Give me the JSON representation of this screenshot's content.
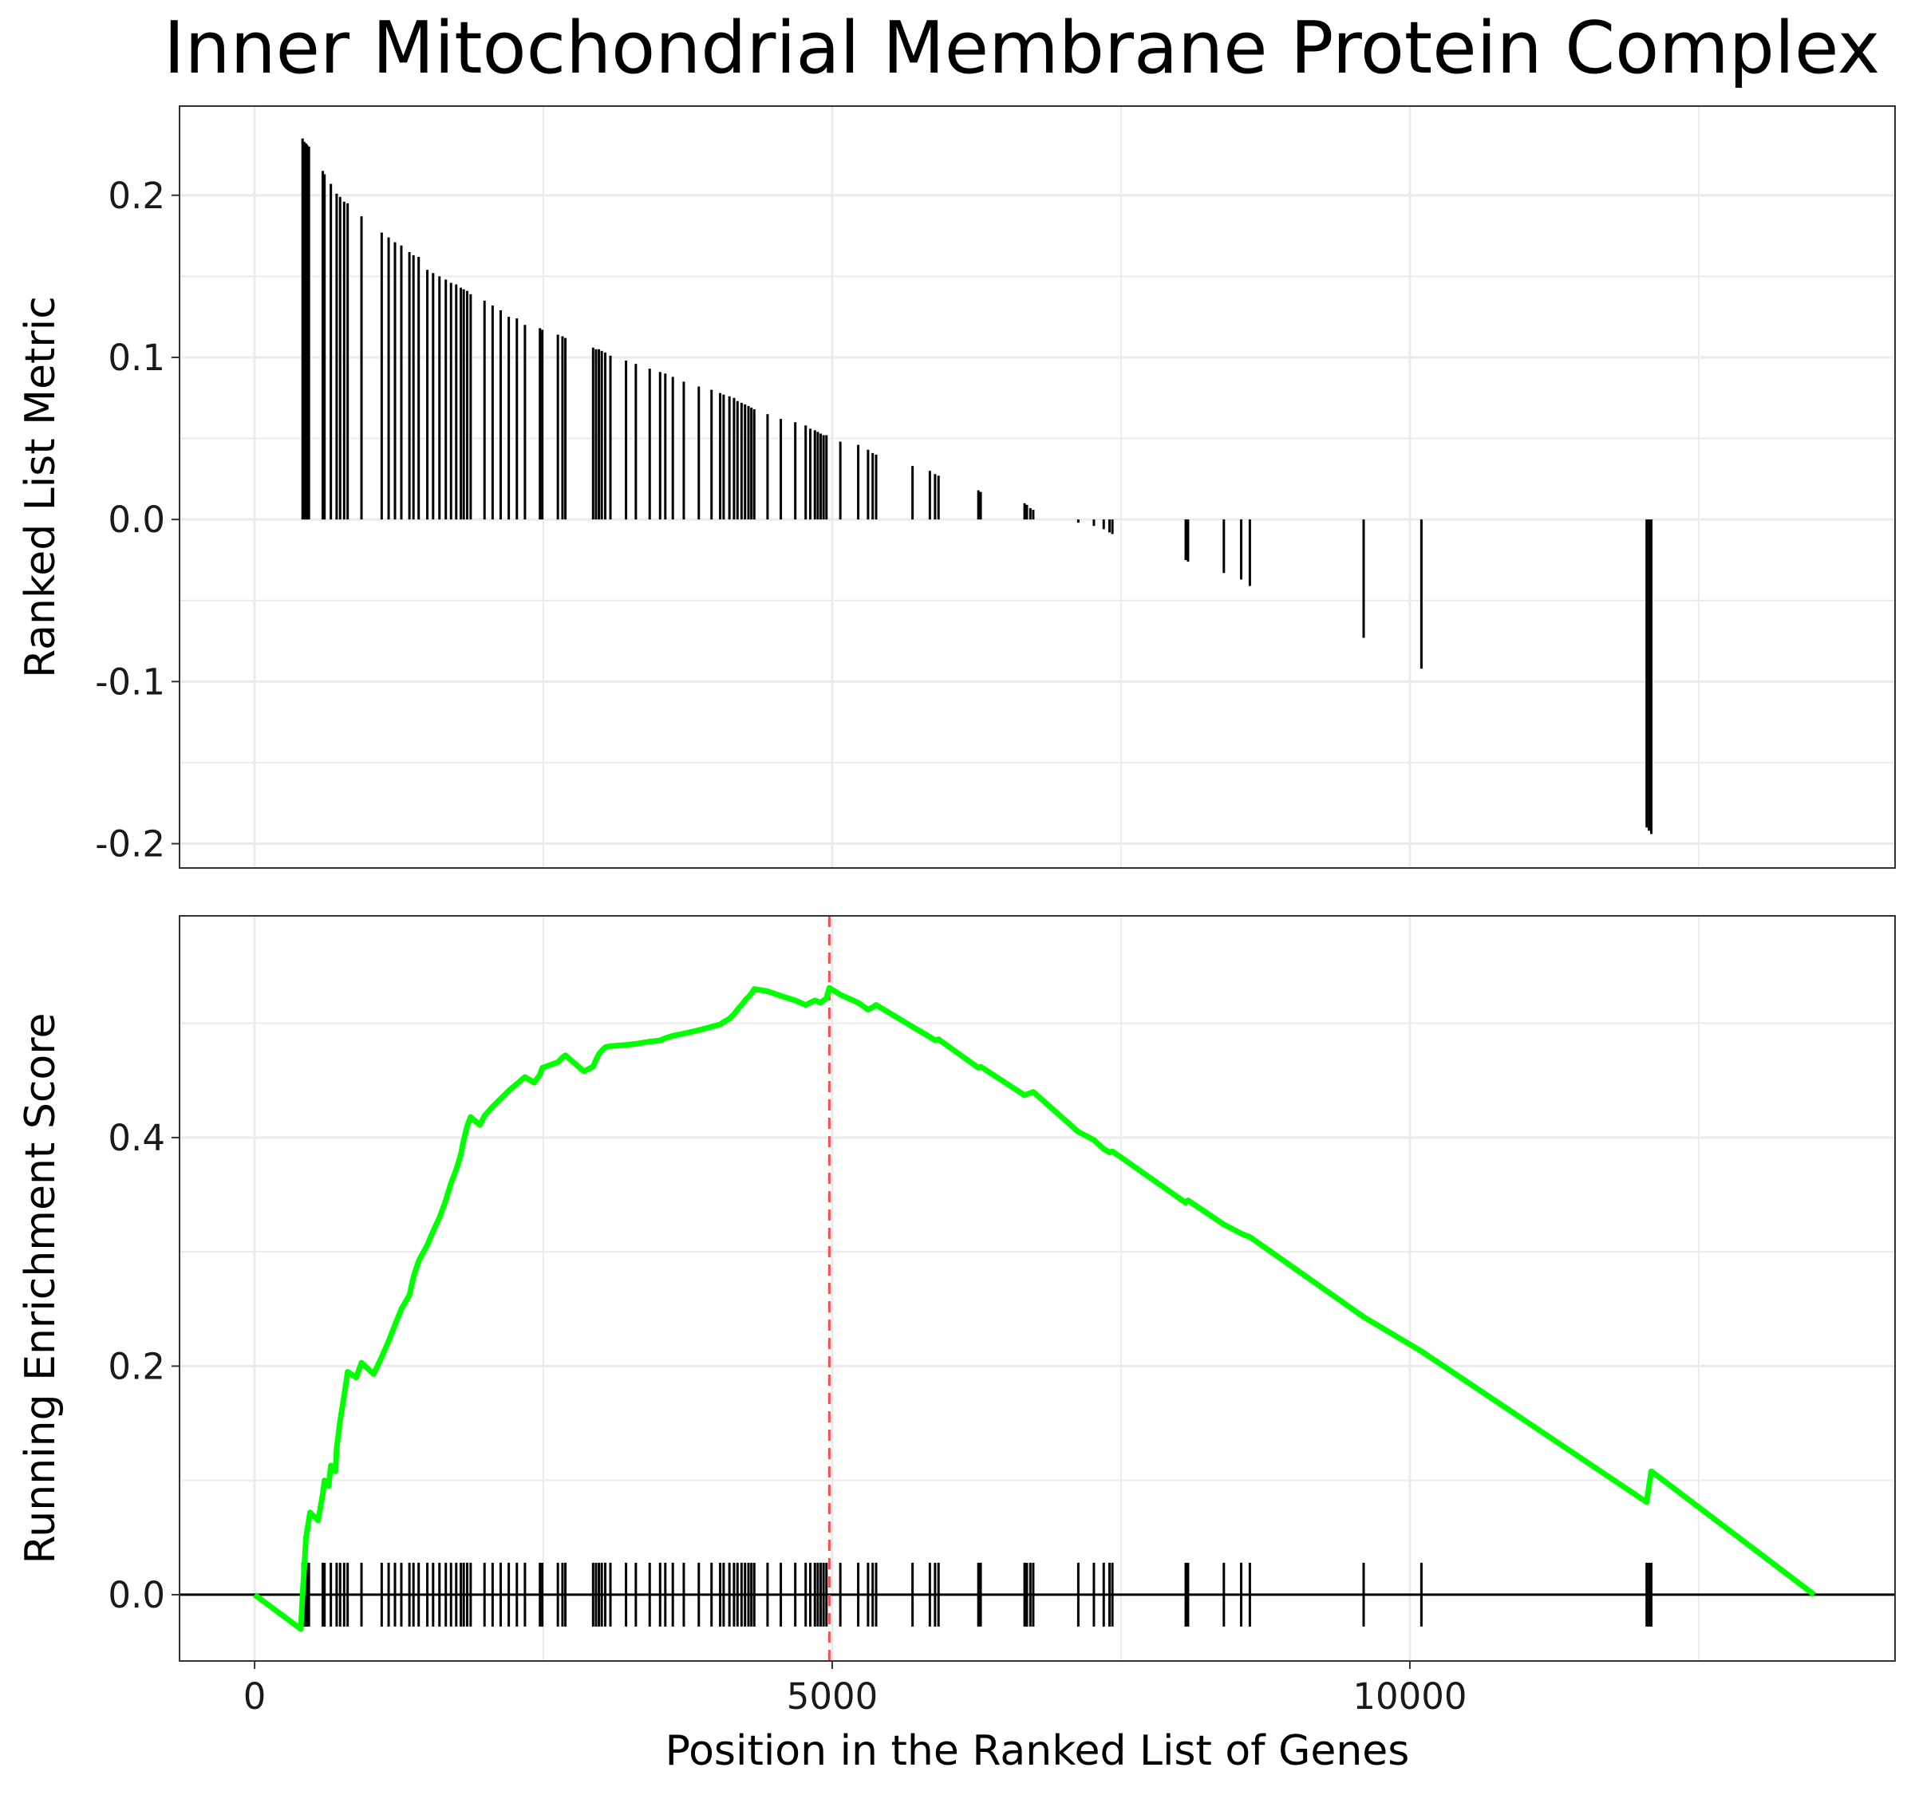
{
  "title": "Inner Mitochondrial Membrane Protein Complex",
  "colors": {
    "curve": "#00ff00",
    "max_line": "#ff4d4d",
    "bars": "#000000",
    "grid": "#ebebeb"
  },
  "chart_data": [
    {
      "type": "bar",
      "panel": "top",
      "ylabel": "Ranked List Metric",
      "xlim": [
        -650,
        14200
      ],
      "ylim": [
        -0.215,
        0.255
      ],
      "yticks": [
        -0.2,
        -0.1,
        0.0,
        0.1,
        0.2
      ],
      "ytick_labels": [
        "-0.2",
        "-0.1",
        "0.0",
        "0.1",
        "0.2"
      ],
      "grid": true,
      "x": [
        415,
        430,
        445,
        455,
        470,
        590,
        605,
        660,
        710,
        740,
        775,
        805,
        925,
        1100,
        1160,
        1215,
        1270,
        1340,
        1375,
        1420,
        1495,
        1545,
        1600,
        1655,
        1700,
        1745,
        1785,
        1810,
        1840,
        1870,
        1990,
        2060,
        2130,
        2200,
        2270,
        2340,
        2470,
        2490,
        2625,
        2665,
        2690,
        2930,
        2955,
        2980,
        3005,
        3035,
        3080,
        3215,
        3300,
        3420,
        3510,
        3555,
        3620,
        3715,
        3845,
        3955,
        4030,
        4060,
        4110,
        4150,
        4180,
        4215,
        4245,
        4275,
        4300,
        4325,
        4440,
        4555,
        4680,
        4770,
        4810,
        4850,
        4875,
        4900,
        4925,
        4950,
        5070,
        5225,
        5310,
        5350,
        5380,
        5695,
        5845,
        5890,
        5920,
        6265,
        6285,
        6665,
        6685,
        6715,
        6740,
        7130,
        7265,
        7350,
        7400,
        7425,
        8060,
        8080,
        8390,
        8540,
        8615,
        9600,
        10100,
        12050,
        12070,
        12090
      ],
      "values": [
        0.235,
        0.233,
        0.232,
        0.231,
        0.23,
        0.215,
        0.213,
        0.207,
        0.201,
        0.199,
        0.196,
        0.195,
        0.187,
        0.177,
        0.174,
        0.171,
        0.169,
        0.165,
        0.163,
        0.162,
        0.154,
        0.152,
        0.15,
        0.148,
        0.146,
        0.145,
        0.143,
        0.142,
        0.141,
        0.139,
        0.135,
        0.132,
        0.129,
        0.125,
        0.124,
        0.12,
        0.118,
        0.117,
        0.114,
        0.113,
        0.112,
        0.106,
        0.105,
        0.105,
        0.104,
        0.103,
        0.101,
        0.098,
        0.096,
        0.093,
        0.091,
        0.09,
        0.088,
        0.085,
        0.082,
        0.08,
        0.078,
        0.077,
        0.076,
        0.075,
        0.073,
        0.072,
        0.071,
        0.07,
        0.069,
        0.068,
        0.065,
        0.062,
        0.06,
        0.058,
        0.056,
        0.055,
        0.054,
        0.053,
        0.052,
        0.052,
        0.048,
        0.046,
        0.043,
        0.041,
        0.04,
        0.033,
        0.03,
        0.028,
        0.027,
        0.018,
        0.017,
        0.01,
        0.009,
        0.007,
        0.006,
        -0.002,
        -0.004,
        -0.006,
        -0.008,
        -0.009,
        -0.025,
        -0.026,
        -0.033,
        -0.037,
        -0.041,
        -0.073,
        -0.092,
        -0.19,
        -0.192,
        -0.194
      ]
    },
    {
      "type": "line",
      "panel": "bottom",
      "xlabel": "Position in the Ranked List of Genes",
      "ylabel": "Running Enrichment Score",
      "xlim": [
        -650,
        14200
      ],
      "ylim": [
        -0.058,
        0.594
      ],
      "xticks": [
        0,
        5000,
        10000
      ],
      "xtick_labels": [
        "0",
        "5000",
        "10000"
      ],
      "yticks": [
        0.0,
        0.2,
        0.4
      ],
      "ytick_labels": [
        "0.0",
        "0.2",
        "0.4"
      ],
      "grid": true,
      "max_position": 4975,
      "x": [
        0,
        400,
        415,
        430,
        445,
        480,
        550,
        590,
        605,
        640,
        660,
        700,
        710,
        740,
        775,
        805,
        880,
        925,
        1030,
        1100,
        1160,
        1215,
        1270,
        1340,
        1375,
        1420,
        1495,
        1545,
        1600,
        1655,
        1700,
        1745,
        1785,
        1810,
        1840,
        1870,
        1950,
        1990,
        2060,
        2130,
        2200,
        2270,
        2340,
        2420,
        2470,
        2490,
        2625,
        2665,
        2690,
        2850,
        2930,
        2955,
        2980,
        3005,
        3035,
        3080,
        3215,
        3300,
        3420,
        3510,
        3555,
        3620,
        3715,
        3845,
        3955,
        4030,
        4060,
        4110,
        4150,
        4180,
        4215,
        4245,
        4275,
        4300,
        4325,
        4440,
        4555,
        4680,
        4770,
        4810,
        4850,
        4875,
        4900,
        4925,
        4950,
        4975,
        5070,
        5225,
        5310,
        5350,
        5380,
        5695,
        5845,
        5890,
        5920,
        6265,
        6285,
        6665,
        6685,
        6715,
        6740,
        7130,
        7265,
        7350,
        7400,
        7425,
        8060,
        8080,
        8390,
        8540,
        8615,
        9600,
        10100,
        12050,
        12070,
        12090,
        13500
      ],
      "values": [
        0.0,
        -0.03,
        0.0,
        0.025,
        0.05,
        0.072,
        0.065,
        0.088,
        0.1,
        0.095,
        0.113,
        0.108,
        0.128,
        0.152,
        0.174,
        0.195,
        0.19,
        0.203,
        0.193,
        0.208,
        0.222,
        0.236,
        0.25,
        0.262,
        0.278,
        0.292,
        0.306,
        0.318,
        0.33,
        0.345,
        0.36,
        0.372,
        0.385,
        0.398,
        0.41,
        0.418,
        0.411,
        0.419,
        0.427,
        0.434,
        0.441,
        0.447,
        0.453,
        0.448,
        0.455,
        0.461,
        0.466,
        0.47,
        0.472,
        0.458,
        0.462,
        0.468,
        0.473,
        0.476,
        0.479,
        0.48,
        0.481,
        0.482,
        0.484,
        0.485,
        0.487,
        0.489,
        0.491,
        0.494,
        0.497,
        0.499,
        0.501,
        0.504,
        0.508,
        0.512,
        0.516,
        0.52,
        0.523,
        0.526,
        0.53,
        0.528,
        0.524,
        0.52,
        0.516,
        0.518,
        0.52,
        0.519,
        0.518,
        0.52,
        0.522,
        0.531,
        0.525,
        0.518,
        0.512,
        0.514,
        0.516,
        0.497,
        0.488,
        0.485,
        0.486,
        0.461,
        0.462,
        0.437,
        0.438,
        0.439,
        0.44,
        0.405,
        0.398,
        0.39,
        0.387,
        0.388,
        0.343,
        0.345,
        0.324,
        0.316,
        0.313,
        0.243,
        0.213,
        0.081,
        0.095,
        0.108,
        0.0
      ]
    }
  ]
}
